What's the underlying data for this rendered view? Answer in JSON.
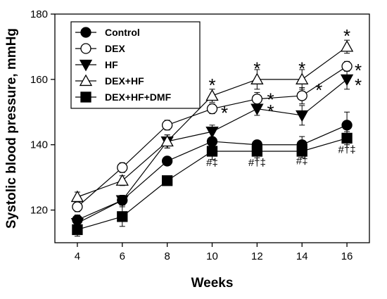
{
  "chart_data": {
    "type": "line",
    "xlabel": "Weeks",
    "ylabel": "Systolic blood pressure, mmHg",
    "x": [
      4,
      6,
      8,
      10,
      12,
      14,
      16
    ],
    "xlim": [
      3,
      17
    ],
    "ylim": [
      110,
      180
    ],
    "xticks": [
      4,
      6,
      8,
      10,
      12,
      14,
      16
    ],
    "yticks": [
      120,
      140,
      160,
      180
    ],
    "grid": false,
    "legend_position": "top-left",
    "series": [
      {
        "name": "Control",
        "marker": "circle",
        "fill": "filled",
        "values": [
          117,
          123,
          135,
          141,
          140,
          140,
          146
        ],
        "errors": [
          1.5,
          1.5,
          1,
          3,
          1,
          2.5,
          4
        ]
      },
      {
        "name": "DEX",
        "marker": "circle",
        "fill": "open",
        "values": [
          121,
          133,
          146,
          151,
          154,
          155,
          164
        ],
        "errors": [
          1.5,
          1.5,
          1.5,
          1.5,
          2,
          2.5,
          1.5
        ]
      },
      {
        "name": "HF",
        "marker": "triangle-down",
        "fill": "filled",
        "values": [
          116,
          123,
          141,
          144,
          151,
          149,
          160
        ],
        "errors": [
          1.5,
          1.5,
          2,
          2,
          2,
          3,
          3
        ]
      },
      {
        "name": "DEX+HF",
        "marker": "triangle-up",
        "fill": "open",
        "values": [
          124,
          129,
          141,
          155,
          160,
          160,
          170
        ],
        "errors": [
          1.5,
          1.5,
          2,
          2,
          3,
          3,
          2
        ]
      },
      {
        "name": "DEX+HF+DMF",
        "marker": "square",
        "fill": "filled",
        "values": [
          114,
          118,
          129,
          138,
          138,
          138,
          142
        ],
        "errors": [
          2,
          3,
          1,
          2.5,
          2,
          2,
          2
        ]
      }
    ],
    "annotations": [
      {
        "x": 10,
        "y": 158.5,
        "text": "*"
      },
      {
        "x": 10.55,
        "y": 150,
        "text": "*"
      },
      {
        "x": 12,
        "y": 163.5,
        "text": "*"
      },
      {
        "x": 12.6,
        "y": 154,
        "text": "*"
      },
      {
        "x": 12.6,
        "y": 150.5,
        "text": "*"
      },
      {
        "x": 14,
        "y": 163.5,
        "text": "*"
      },
      {
        "x": 14.75,
        "y": 157,
        "text": "*"
      },
      {
        "x": 16,
        "y": 173.5,
        "text": "*"
      },
      {
        "x": 16.5,
        "y": 163,
        "text": "*"
      },
      {
        "x": 16.5,
        "y": 158.5,
        "text": "*"
      },
      {
        "x": 10,
        "y": 133.5,
        "text": "#‡"
      },
      {
        "x": 12,
        "y": 133.5,
        "text": "#†‡"
      },
      {
        "x": 14,
        "y": 134,
        "text": "#‡"
      },
      {
        "x": 16,
        "y": 137.5,
        "text": "#†‡"
      }
    ]
  },
  "colors": {
    "ink": "#000000",
    "background": "#ffffff"
  }
}
